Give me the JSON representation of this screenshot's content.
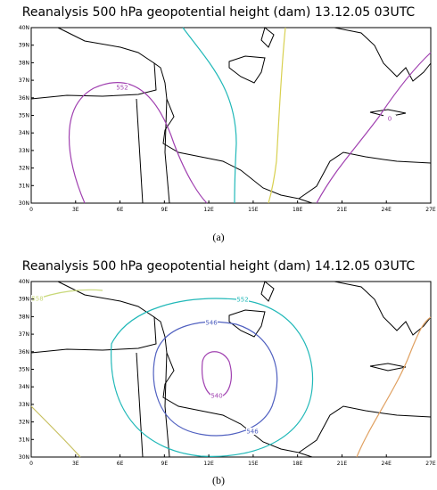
{
  "panels": [
    {
      "title": "Reanalysis 500 hPa geopotential height (dam) 13.12.05 03UTC",
      "x_tick_labels": [
        "0",
        "3E",
        "6E",
        "9E",
        "12E",
        "15E",
        "18E",
        "21E",
        "24E",
        "27E"
      ],
      "y_tick_labels": [
        "30N",
        "31N",
        "32N",
        "33N",
        "34N",
        "35N",
        "36N",
        "37N",
        "38N",
        "39N",
        "40N"
      ],
      "contour_labels": [
        "552",
        "0"
      ],
      "caption": "(a)"
    },
    {
      "title": "Reanalysis 500 hPa geopotential height (dam) 14.12.05 03UTC",
      "x_tick_labels": [
        "0",
        "3E",
        "6E",
        "9E",
        "12E",
        "15E",
        "18E",
        "21E",
        "24E",
        "27E"
      ],
      "y_tick_labels": [
        "30N",
        "31N",
        "32N",
        "33N",
        "34N",
        "35N",
        "36N",
        "37N",
        "38N",
        "39N",
        "40N"
      ],
      "contour_labels": [
        "558",
        "552",
        "546",
        "540",
        "546"
      ],
      "caption": "(b)"
    }
  ]
}
